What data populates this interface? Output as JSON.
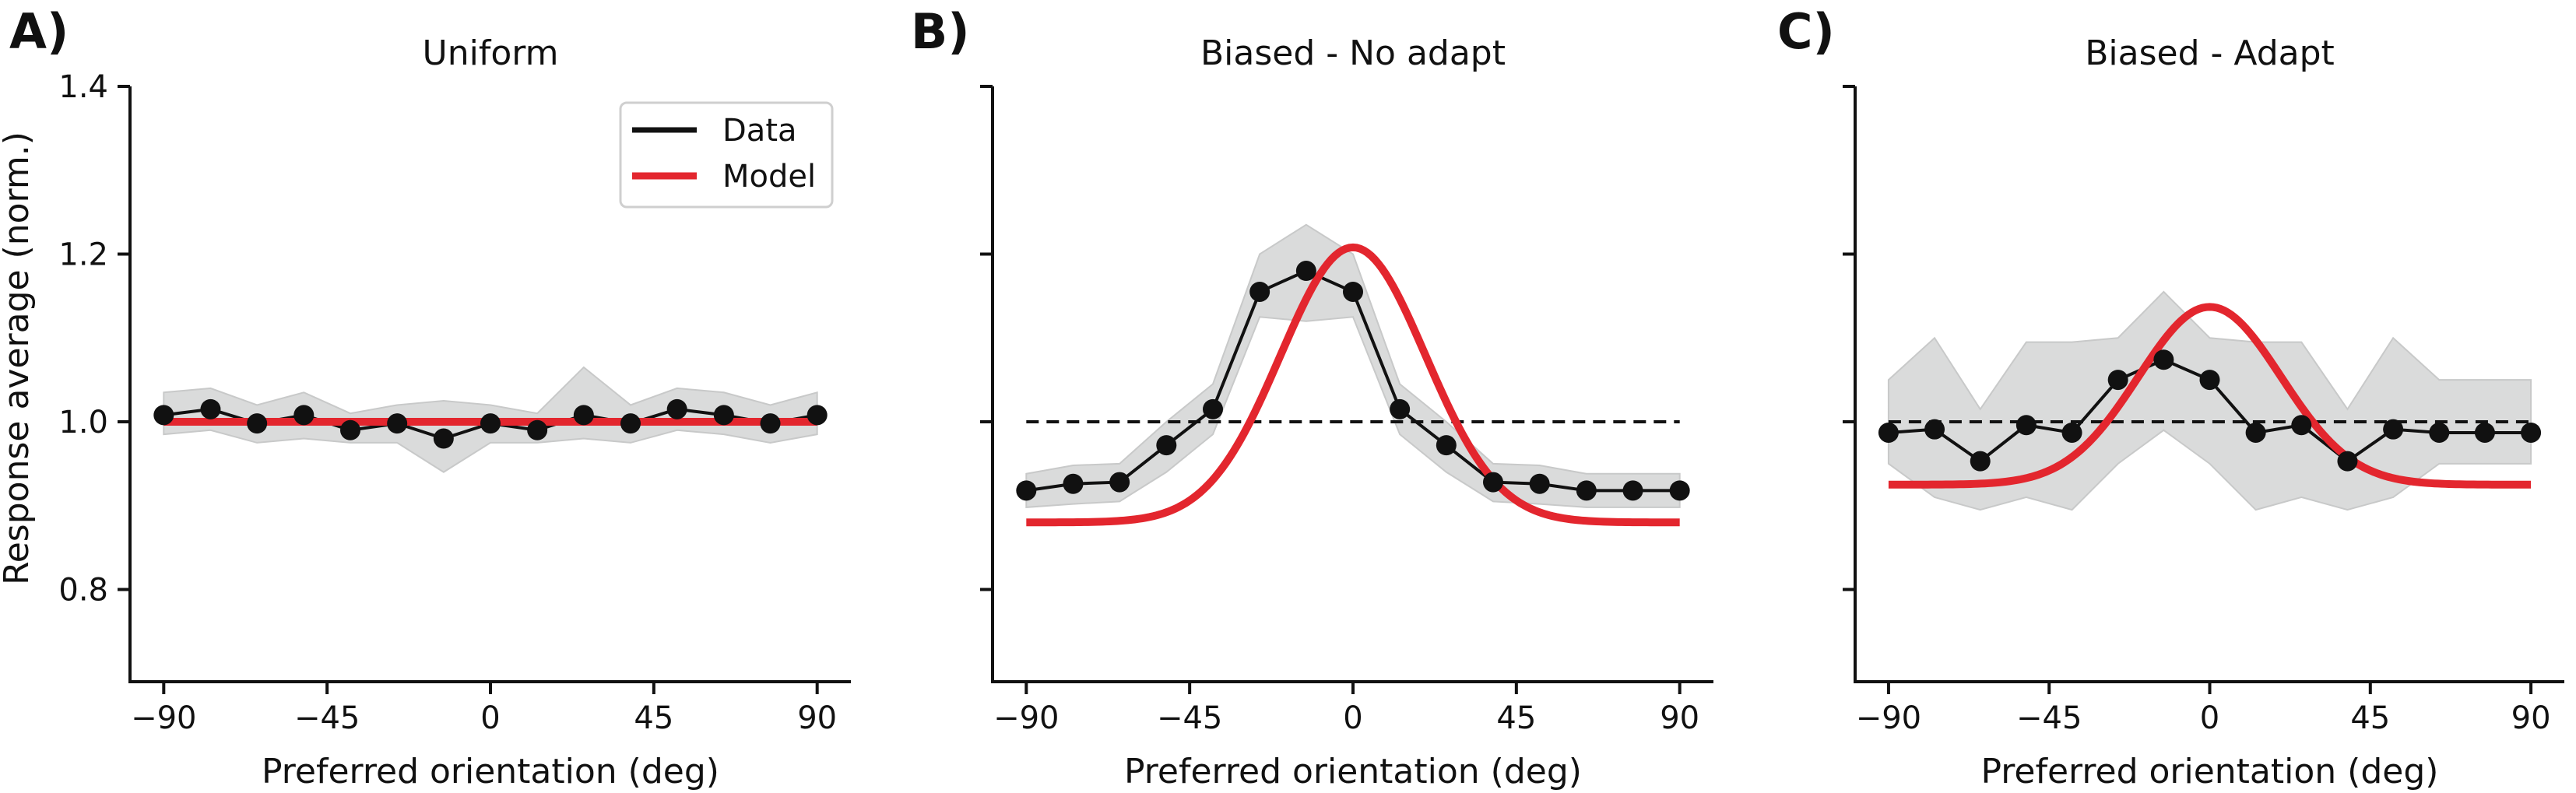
{
  "colors": {
    "data": "#111111",
    "model": "#e3262e",
    "band": "#dadbdb",
    "band_edge": "#c8c9c9",
    "reference": "#111111",
    "axis": "#111111"
  },
  "shared": {
    "xlabel": "Preferred orientation (deg)",
    "ylabel": "Response average (norm.)",
    "xlim": [
      -95,
      95
    ],
    "ylim": [
      0.69,
      1.4
    ],
    "xticks": [
      -90,
      -45,
      0,
      45,
      90
    ],
    "xtick_labels": [
      "−90",
      "−45",
      "0",
      "45",
      "90"
    ],
    "yticks": [
      0.8,
      1.0,
      1.2,
      1.4
    ],
    "ytick_labels": [
      "0.8",
      "1.0",
      "1.2",
      "1.4"
    ],
    "legend": {
      "location": "top-right",
      "entries": [
        {
          "label": "Data",
          "color": "#111111"
        },
        {
          "label": "Model",
          "color": "#e3262e"
        }
      ]
    }
  },
  "chart_data": [
    {
      "type": "line",
      "panel_label": "A)",
      "title": "Uniform",
      "xlabel": "Preferred orientation (deg)",
      "ylabel": "Response average (norm.)",
      "reference_line": null,
      "x": [
        -90,
        -77.1,
        -64.3,
        -51.4,
        -38.6,
        -25.7,
        -12.9,
        0,
        12.9,
        25.7,
        38.6,
        51.4,
        64.3,
        77.1,
        90
      ],
      "series": [
        {
          "name": "Data",
          "values": [
            1.008,
            1.015,
            0.998,
            1.008,
            0.99,
            0.998,
            0.98,
            0.998,
            0.99,
            1.008,
            0.998,
            1.015,
            1.008,
            0.998,
            1.008
          ]
        },
        {
          "name": "Data band lower",
          "values": [
            0.985,
            0.99,
            0.975,
            0.98,
            0.975,
            0.975,
            0.94,
            0.975,
            0.975,
            0.98,
            0.975,
            0.99,
            0.985,
            0.975,
            0.985
          ]
        },
        {
          "name": "Data band upper",
          "values": [
            1.035,
            1.04,
            1.02,
            1.035,
            1.01,
            1.02,
            1.025,
            1.02,
            1.01,
            1.065,
            1.02,
            1.04,
            1.035,
            1.02,
            1.035
          ]
        }
      ],
      "model": {
        "type": "gaussian",
        "baseline": 1.0,
        "amplitude": 0.0,
        "sigma_deg": 20
      }
    },
    {
      "type": "line",
      "panel_label": "B)",
      "title": "Biased - No adapt",
      "xlabel": "Preferred orientation (deg)",
      "reference_line": 1.0,
      "x": [
        -90,
        -77.1,
        -64.3,
        -51.4,
        -38.6,
        -25.7,
        -12.9,
        0,
        12.9,
        25.7,
        38.6,
        51.4,
        64.3,
        77.1,
        90
      ],
      "series": [
        {
          "name": "Data",
          "values": [
            0.918,
            0.926,
            0.928,
            0.972,
            1.015,
            1.155,
            1.18,
            1.155,
            1.015,
            0.972,
            0.928,
            0.926,
            0.918,
            0.918,
            0.918
          ]
        },
        {
          "name": "Data band lower",
          "values": [
            0.898,
            0.902,
            0.905,
            0.94,
            0.985,
            1.125,
            1.12,
            1.125,
            0.985,
            0.94,
            0.905,
            0.902,
            0.898,
            0.898,
            0.898
          ]
        },
        {
          "name": "Data band upper",
          "values": [
            0.938,
            0.948,
            0.95,
            1.0,
            1.045,
            1.2,
            1.235,
            1.2,
            1.045,
            1.0,
            0.95,
            0.948,
            0.938,
            0.938,
            0.938
          ]
        }
      ],
      "model": {
        "type": "gaussian",
        "baseline": 0.88,
        "amplitude": 0.328,
        "sigma_deg": 20
      }
    },
    {
      "type": "line",
      "panel_label": "C)",
      "title": "Biased - Adapt",
      "xlabel": "Preferred orientation (deg)",
      "reference_line": 1.0,
      "x": [
        -90,
        -77.1,
        -64.3,
        -51.4,
        -38.6,
        -25.7,
        -12.9,
        0,
        12.9,
        25.7,
        38.6,
        51.4,
        64.3,
        77.1,
        90
      ],
      "series": [
        {
          "name": "Data",
          "values": [
            0.987,
            0.991,
            0.953,
            0.996,
            0.987,
            1.05,
            1.074,
            1.05,
            0.987,
            0.996,
            0.953,
            0.991,
            0.987,
            0.987,
            0.987
          ]
        },
        {
          "name": "Data band lower",
          "values": [
            0.95,
            0.91,
            0.895,
            0.91,
            0.895,
            0.95,
            0.99,
            0.95,
            0.895,
            0.91,
            0.895,
            0.91,
            0.95,
            0.95,
            0.95
          ]
        },
        {
          "name": "Data band upper",
          "values": [
            1.05,
            1.1,
            1.015,
            1.095,
            1.095,
            1.1,
            1.155,
            1.1,
            1.095,
            1.095,
            1.015,
            1.1,
            1.05,
            1.05,
            1.05
          ]
        }
      ],
      "model": {
        "type": "gaussian",
        "baseline": 0.925,
        "amplitude": 0.212,
        "sigma_deg": 20
      }
    }
  ]
}
